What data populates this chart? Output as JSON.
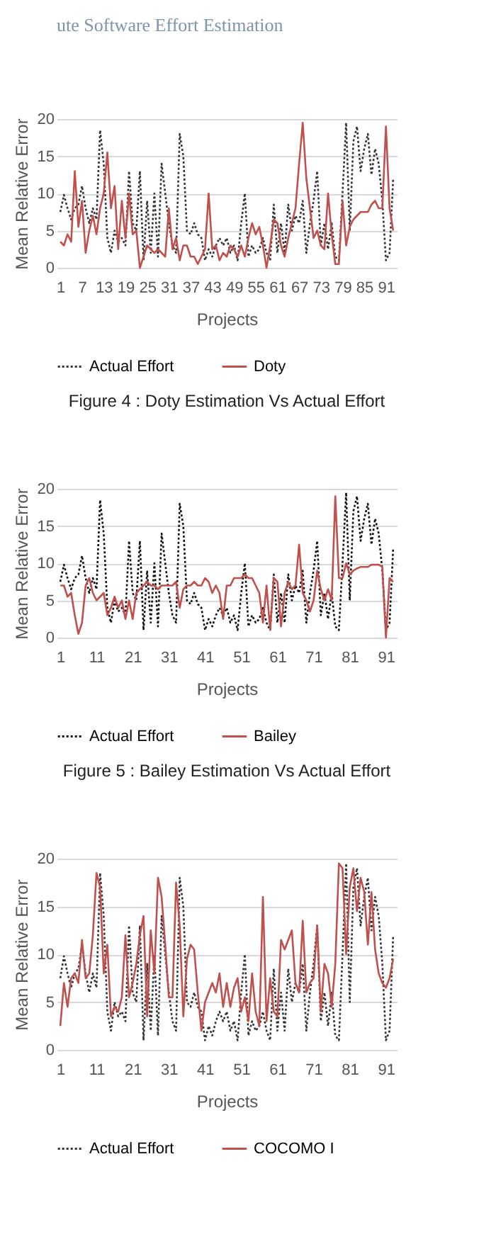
{
  "chart_data": [
    {
      "type": "other",
      "title": "ute Software Effort Estimation"
    },
    {
      "type": "line",
      "ylabel": "Mean Relative Error",
      "xlabel": "Projects",
      "xlim": [
        0,
        94
      ],
      "xticks": [
        1,
        7,
        13,
        19,
        25,
        31,
        37,
        43,
        49,
        55,
        61,
        67,
        73,
        79,
        85,
        91
      ],
      "ylim": [
        0,
        20
      ],
      "yticks": [
        0,
        5,
        10,
        15,
        20
      ],
      "grid": "y",
      "legend": "bottom",
      "annotations": [
        "Figure  4 : Doty Estimation Vs Actual Effort"
      ],
      "x": [
        1,
        2,
        3,
        4,
        5,
        6,
        7,
        8,
        9,
        10,
        11,
        12,
        13,
        14,
        15,
        16,
        17,
        18,
        19,
        20,
        21,
        22,
        23,
        24,
        25,
        26,
        27,
        28,
        29,
        30,
        31,
        32,
        33,
        34,
        35,
        36,
        37,
        38,
        39,
        40,
        41,
        42,
        43,
        44,
        45,
        46,
        47,
        48,
        49,
        50,
        51,
        52,
        53,
        54,
        55,
        56,
        57,
        58,
        59,
        60,
        61,
        62,
        63,
        64,
        65,
        66,
        67,
        68,
        69,
        70,
        71,
        72,
        73,
        74,
        75,
        76,
        77,
        78,
        79,
        80,
        81,
        82,
        83,
        84,
        85,
        86,
        87,
        88,
        89,
        90,
        91,
        92,
        93
      ],
      "series": [
        {
          "name": "Actual Effort",
          "color": "#333333",
          "line_style": "dotted",
          "values": [
            7.5,
            9.8,
            8,
            6.5,
            8,
            8.5,
            11,
            8,
            6,
            8,
            6.5,
            18.5,
            14,
            4,
            2,
            5,
            3.5,
            4,
            3,
            13,
            6,
            5,
            13,
            1,
            9,
            2,
            10,
            1.5,
            14,
            10,
            6,
            3,
            2,
            18,
            15,
            5,
            4.5,
            6,
            4.5,
            4,
            1,
            2.5,
            1.5,
            3,
            4,
            3,
            4,
            2,
            3,
            1,
            6,
            10,
            1.5,
            3,
            2,
            2.5,
            4,
            2,
            1,
            8.5,
            2,
            6,
            2,
            8.5,
            5,
            7,
            6,
            9,
            2,
            6,
            9,
            13,
            3,
            6,
            2.5,
            6,
            1.5,
            1,
            10,
            19.5,
            5,
            17,
            19,
            13,
            16,
            18,
            12.5,
            16,
            14,
            9,
            1,
            2,
            12
          ]
        },
        {
          "name": "Doty",
          "color": "#c0504d",
          "line_style": "solid",
          "values": [
            3.5,
            3,
            4.5,
            3.5,
            13,
            5.5,
            9,
            2,
            5,
            7,
            4.5,
            8,
            10,
            15.5,
            8,
            11,
            2.5,
            9,
            4,
            10,
            4.5,
            5,
            0,
            1.5,
            3,
            2.5,
            2,
            2.5,
            2,
            1.5,
            8,
            2.5,
            4,
            1,
            3,
            3,
            1.5,
            1.5,
            0.5,
            1.5,
            2.5,
            10,
            2.5,
            3,
            1,
            2,
            1.5,
            3,
            2.5,
            1.5,
            3,
            1.5,
            4,
            6,
            4.5,
            5.5,
            3,
            0,
            3,
            6.5,
            6,
            3,
            1.5,
            4,
            6,
            8,
            14,
            19.5,
            12,
            8,
            4,
            5,
            3,
            2.5,
            10,
            4.5,
            0.5,
            0.5,
            9,
            3,
            5.5,
            6.5,
            7,
            7.5,
            7.5,
            7.5,
            8.5,
            9,
            8,
            8,
            19,
            8,
            5
          ]
        }
      ]
    },
    {
      "type": "line",
      "ylabel": "Mean Relative Error",
      "xlabel": "Projects",
      "xlim": [
        0,
        94
      ],
      "xticks": [
        1,
        11,
        21,
        31,
        41,
        51,
        61,
        71,
        81,
        91
      ],
      "ylim": [
        0,
        20
      ],
      "yticks": [
        0,
        5,
        10,
        15,
        20
      ],
      "grid": "y",
      "legend": "bottom",
      "annotations": [
        "Figure 5 : Bailey Estimation Vs Actual Effort"
      ],
      "x": [
        1,
        2,
        3,
        4,
        5,
        6,
        7,
        8,
        9,
        10,
        11,
        12,
        13,
        14,
        15,
        16,
        17,
        18,
        19,
        20,
        21,
        22,
        23,
        24,
        25,
        26,
        27,
        28,
        29,
        30,
        31,
        32,
        33,
        34,
        35,
        36,
        37,
        38,
        39,
        40,
        41,
        42,
        43,
        44,
        45,
        46,
        47,
        48,
        49,
        50,
        51,
        52,
        53,
        54,
        55,
        56,
        57,
        58,
        59,
        60,
        61,
        62,
        63,
        64,
        65,
        66,
        67,
        68,
        69,
        70,
        71,
        72,
        73,
        74,
        75,
        76,
        77,
        78,
        79,
        80,
        81,
        82,
        83,
        84,
        85,
        86,
        87,
        88,
        89,
        90,
        91,
        92,
        93
      ],
      "series": [
        {
          "name": "Actual Effort",
          "color": "#111111",
          "line_style": "dotted",
          "values": [
            7.5,
            9.8,
            8,
            6.5,
            8,
            8.5,
            11,
            8,
            6,
            8,
            6.5,
            18.5,
            14,
            4,
            2,
            5,
            3.5,
            4,
            3,
            13,
            6,
            5,
            13,
            1,
            9,
            2,
            10,
            1.5,
            14,
            10,
            6,
            3,
            2,
            18,
            15,
            5,
            4.5,
            6,
            4.5,
            4,
            1,
            2.5,
            1.5,
            3,
            4,
            3,
            4,
            2,
            3,
            1,
            6,
            10,
            1.5,
            3,
            2,
            2.5,
            4,
            2,
            1,
            8.5,
            2,
            6,
            2,
            8.5,
            5,
            7,
            6,
            9,
            2,
            6,
            9,
            13,
            3,
            6,
            2.5,
            6,
            1.5,
            1,
            10,
            19.5,
            5,
            17,
            19,
            13,
            16,
            18,
            12.5,
            16,
            14,
            9,
            1,
            2,
            12
          ]
        },
        {
          "name": "Bailey",
          "color": "#c0504d",
          "line_style": "solid",
          "values": [
            7,
            7,
            5.5,
            6,
            3,
            0.5,
            2,
            7,
            8,
            6,
            5,
            5.5,
            6,
            3,
            4,
            5.5,
            4,
            5,
            2.5,
            5,
            2.5,
            6,
            6.5,
            7,
            7.5,
            7,
            7,
            6.5,
            7,
            7,
            7,
            7,
            7.5,
            4,
            6.5,
            7,
            7,
            7.5,
            7,
            7,
            8,
            7.5,
            6,
            7,
            6,
            2.5,
            7,
            7,
            8,
            8,
            8,
            8.5,
            8,
            8,
            7,
            6,
            2,
            7,
            1,
            8,
            7.5,
            1.5,
            6,
            7.5,
            6.5,
            7,
            12.5,
            6,
            5,
            3.5,
            5,
            9,
            6.5,
            5,
            6.5,
            5,
            19,
            8,
            8,
            10,
            8.5,
            9,
            9.3,
            9.5,
            9.5,
            9.5,
            9.8,
            9.8,
            9.8,
            9.5,
            0,
            8,
            7.5
          ]
        }
      ]
    },
    {
      "type": "line",
      "ylabel": "Mean Relative Error",
      "xlabel": "Projects",
      "xlim": [
        0,
        94
      ],
      "xticks": [
        1,
        11,
        21,
        31,
        41,
        51,
        61,
        71,
        81,
        91
      ],
      "ylim": [
        0,
        20
      ],
      "yticks": [
        0,
        5,
        10,
        15,
        20
      ],
      "grid": "y",
      "legend": "bottom",
      "x": [
        1,
        2,
        3,
        4,
        5,
        6,
        7,
        8,
        9,
        10,
        11,
        12,
        13,
        14,
        15,
        16,
        17,
        18,
        19,
        20,
        21,
        22,
        23,
        24,
        25,
        26,
        27,
        28,
        29,
        30,
        31,
        32,
        33,
        34,
        35,
        36,
        37,
        38,
        39,
        40,
        41,
        42,
        43,
        44,
        45,
        46,
        47,
        48,
        49,
        50,
        51,
        52,
        53,
        54,
        55,
        56,
        57,
        58,
        59,
        60,
        61,
        62,
        63,
        64,
        65,
        66,
        67,
        68,
        69,
        70,
        71,
        72,
        73,
        74,
        75,
        76,
        77,
        78,
        79,
        80,
        81,
        82,
        83,
        84,
        85,
        86,
        87,
        88,
        89,
        90,
        91,
        92,
        93
      ],
      "series": [
        {
          "name": "Actual Effort",
          "color": "#333333",
          "line_style": "dotted",
          "values": [
            7.5,
            9.8,
            8,
            6.5,
            8,
            8.5,
            11,
            8,
            6,
            8,
            6.5,
            18.5,
            14,
            4,
            2,
            5,
            3.5,
            4,
            3,
            13,
            6,
            5,
            13,
            1,
            9,
            2,
            10,
            1.5,
            14,
            10,
            6,
            3,
            2,
            18,
            15,
            5,
            4.5,
            6,
            4.5,
            4,
            1,
            2.5,
            1.5,
            3,
            4,
            3,
            4,
            2,
            3,
            1,
            6,
            10,
            1.5,
            3,
            2,
            2.5,
            4,
            2,
            1,
            8.5,
            2,
            6,
            2,
            8.5,
            5,
            7,
            6,
            9,
            2,
            6,
            9,
            13,
            3,
            6,
            2.5,
            6,
            1.5,
            1,
            10,
            19.5,
            5,
            17,
            19,
            13,
            16,
            18,
            12.5,
            16,
            14,
            9,
            1,
            2,
            12
          ]
        },
        {
          "name": "COCOMO I",
          "color": "#c0504d",
          "line_style": "solid",
          "values": [
            2.5,
            7,
            4.5,
            7.5,
            8,
            7,
            11.5,
            7.5,
            8,
            12,
            18.5,
            17,
            8,
            11,
            3.5,
            4.5,
            4,
            5.5,
            12,
            5.5,
            7,
            9,
            12,
            14,
            3.5,
            12.5,
            8,
            18,
            16,
            11,
            5.5,
            5.5,
            17.5,
            13,
            3.5,
            9.5,
            11,
            10.5,
            6,
            2,
            5,
            6,
            7,
            6,
            8,
            4.5,
            7,
            4.5,
            6.5,
            7.5,
            4,
            5.5,
            3,
            8,
            4,
            2.5,
            16,
            3,
            7.5,
            4,
            3.5,
            11.5,
            10.5,
            11.5,
            12.5,
            7,
            6,
            13.5,
            6,
            7,
            7.5,
            13,
            4,
            9,
            8,
            4.5,
            9,
            19.5,
            19,
            10,
            17,
            19,
            14.5,
            18,
            16.5,
            11,
            16.5,
            10.5,
            8,
            7,
            6.5,
            7.5,
            9.5
          ]
        }
      ]
    }
  ]
}
